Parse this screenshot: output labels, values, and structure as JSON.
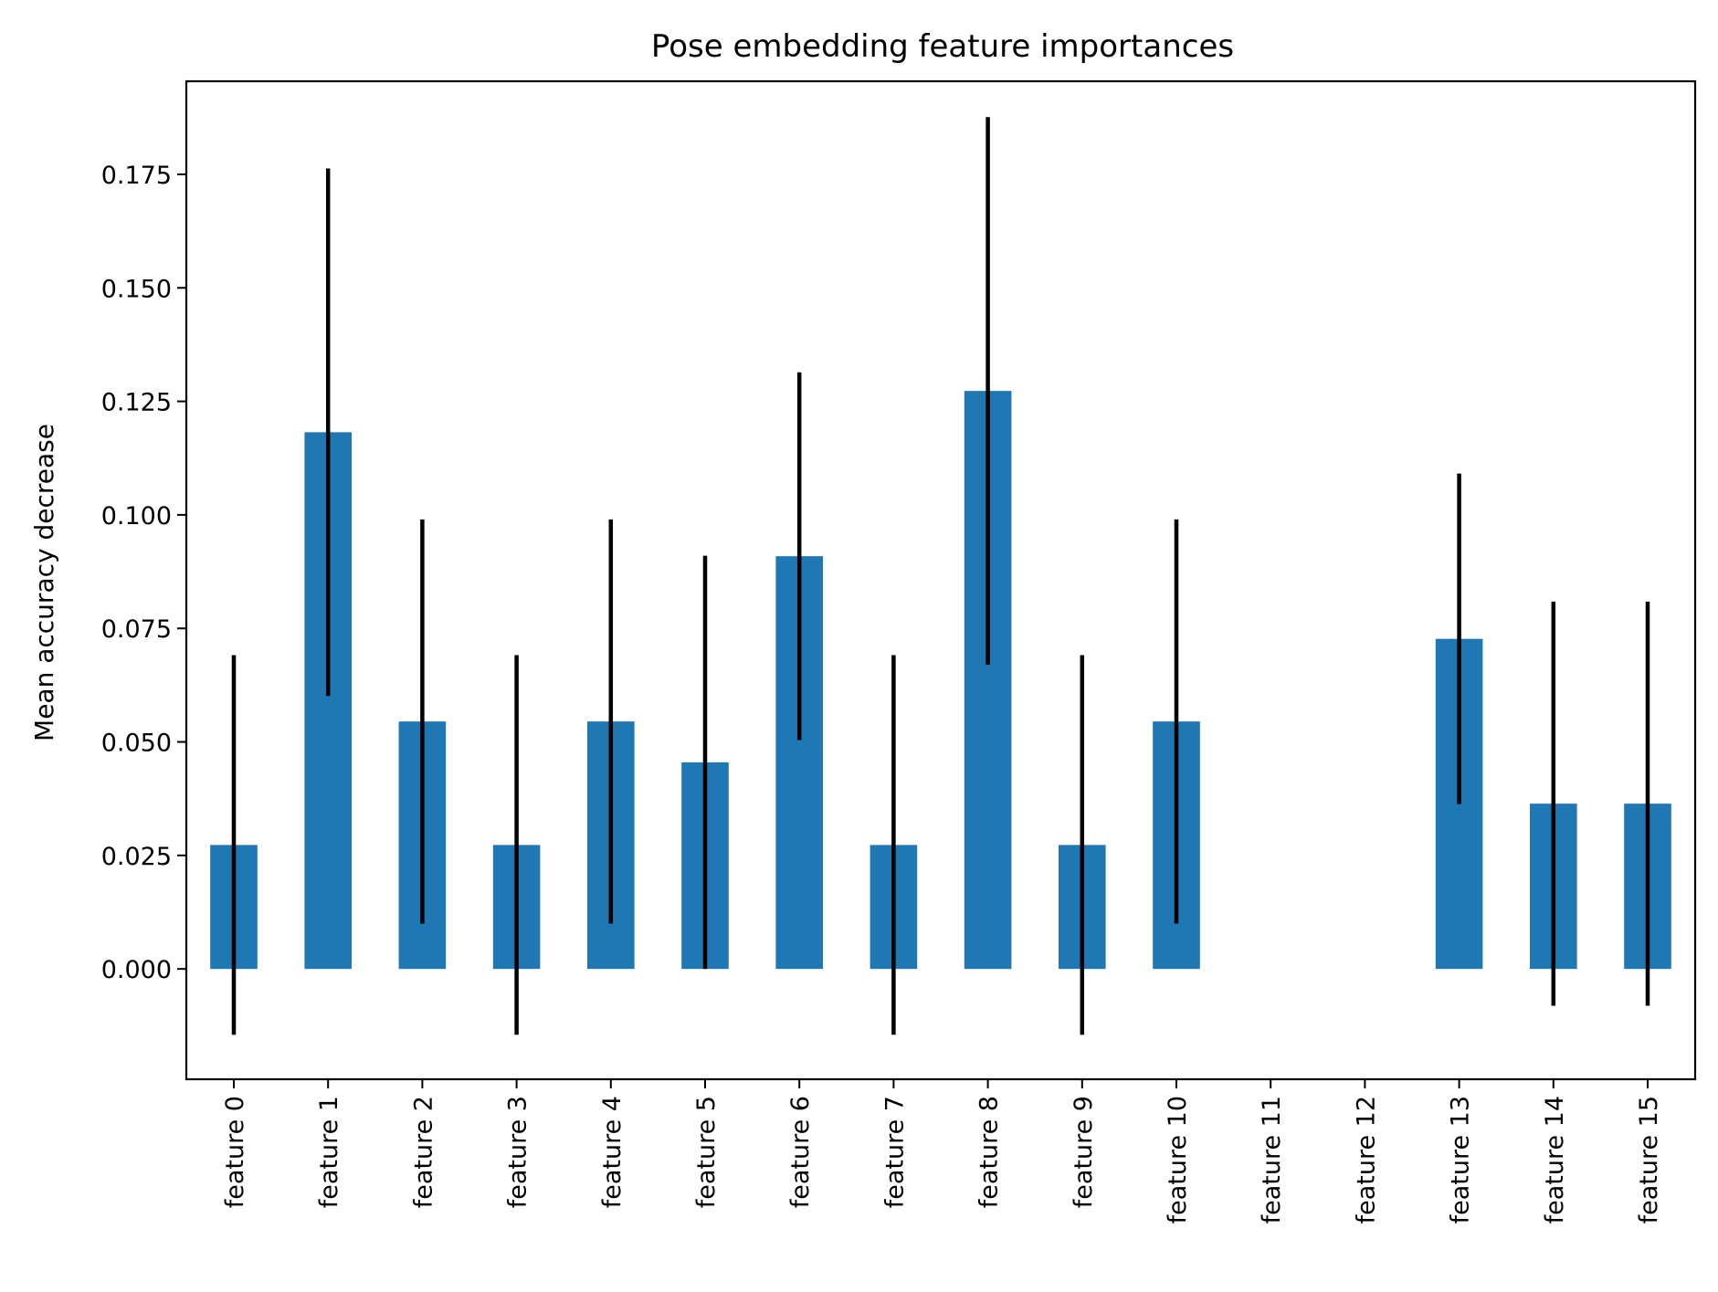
{
  "chart_data": {
    "type": "bar",
    "title": "Pose embedding feature importances",
    "xlabel": "",
    "ylabel": "Mean accuracy decrease",
    "categories": [
      "feature 0",
      "feature 1",
      "feature 2",
      "feature 3",
      "feature 4",
      "feature 5",
      "feature 6",
      "feature 7",
      "feature 8",
      "feature 9",
      "feature 10",
      "feature 11",
      "feature 12",
      "feature 13",
      "feature 14",
      "feature 15"
    ],
    "values": [
      0.0273,
      0.1182,
      0.0545,
      0.0273,
      0.0545,
      0.0455,
      0.0909,
      0.0273,
      0.1273,
      0.0273,
      0.0545,
      0.0,
      0.0,
      0.0727,
      0.0364,
      0.0364
    ],
    "errors": [
      0.0418,
      0.0581,
      0.0445,
      0.0418,
      0.0445,
      0.0455,
      0.0405,
      0.0418,
      0.0603,
      0.0418,
      0.0445,
      0.0,
      0.0,
      0.0364,
      0.0445,
      0.0445
    ],
    "yticks": [
      "0.000",
      "0.025",
      "0.050",
      "0.075",
      "0.100",
      "0.125",
      "0.150",
      "0.175"
    ],
    "ytick_values": [
      0.0,
      0.025,
      0.05,
      0.075,
      0.1,
      0.125,
      0.15,
      0.175
    ],
    "ylim": [
      -0.0243,
      0.1955
    ],
    "bar_color": "#1f77b4",
    "error_color": "#000000",
    "grid": false,
    "legend": "none"
  }
}
